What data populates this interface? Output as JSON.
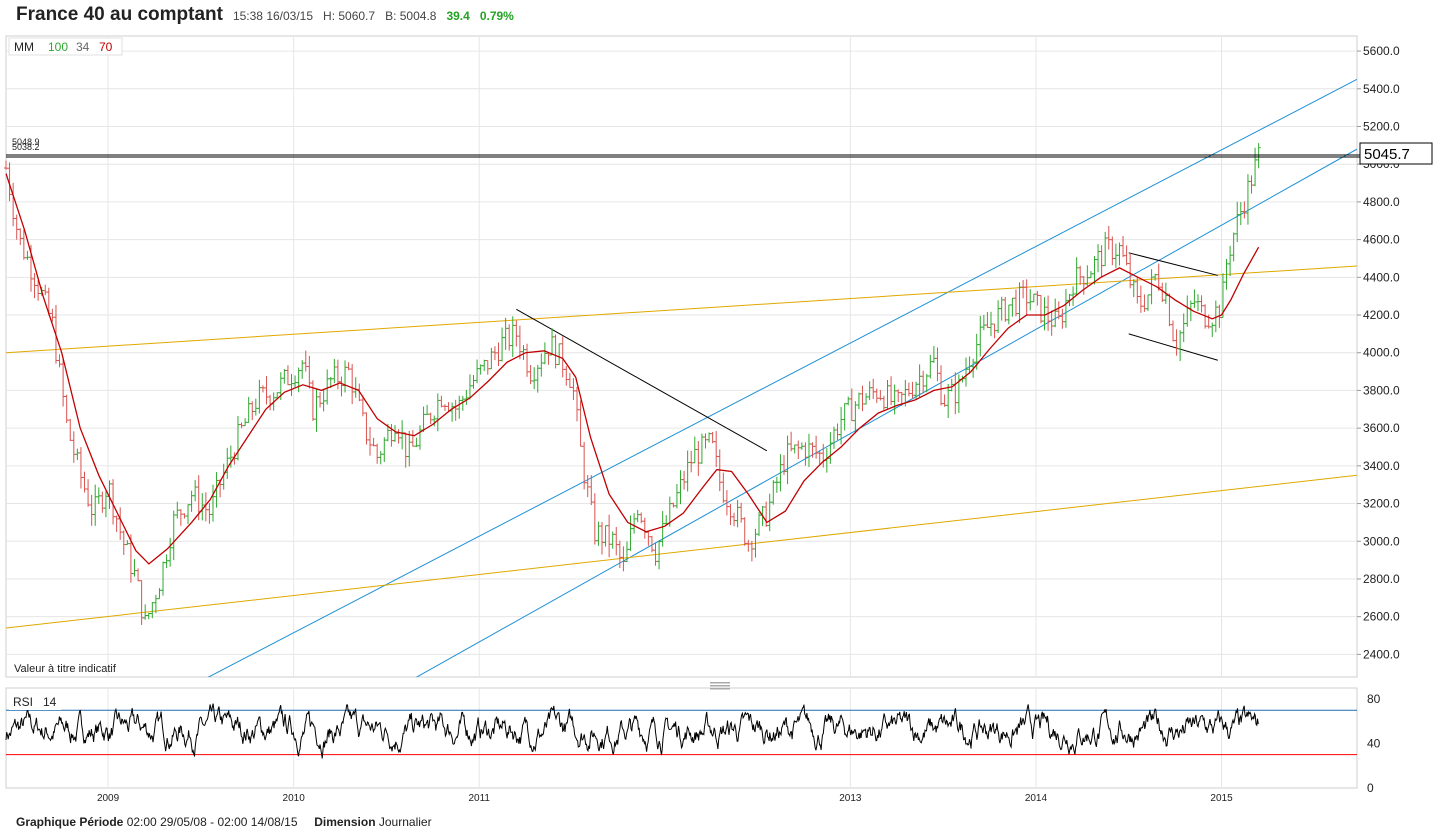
{
  "header": {
    "title": "France 40 au comptant",
    "time": "15:38 16/03/15",
    "high": "H: 5060.7",
    "bid": "B: 5004.8",
    "change": "39.4",
    "change_pct": "0.79%"
  },
  "legend": {
    "mm_label": "MM",
    "mm_periods": [
      "100",
      "34",
      "70"
    ]
  },
  "rsi_label": {
    "name": "RSI",
    "period": "14"
  },
  "disclaimer": "Valeur à titre indicatif",
  "level_labels": [
    "5048.9",
    "5038.2"
  ],
  "last_price_label": "5045.7",
  "footer": {
    "period_label": "Graphique Période",
    "period_value": "02:00 29/05/08 - 02:00 14/08/15",
    "dimension_label": "Dimension",
    "dimension_value": "Journalier"
  },
  "colors": {
    "up": "#2fa82f",
    "down": "#d9534f",
    "ma": "#c00000",
    "channel": "#1e90d6",
    "support": "#e0a800",
    "grid": "#e6e6e6",
    "rsi_upper": "#1e6fb5",
    "rsi_lower": "#ff0000"
  },
  "chart_data": [
    {
      "type": "candlestick",
      "title": "France 40 au comptant",
      "y_ticks": [
        2400,
        2600,
        2800,
        3000,
        3200,
        3400,
        3600,
        3800,
        4000,
        4200,
        4400,
        4600,
        4800,
        5000,
        5200,
        5400,
        5600
      ],
      "ylim": [
        2280,
        5680
      ],
      "x_tick_labels": [
        "2009",
        "2010",
        "2011",
        "2013",
        "2014",
        "2015"
      ],
      "x_tick_dates": [
        2009.0,
        2010.0,
        2011.0,
        2013.0,
        2014.0,
        2015.0
      ],
      "xlim": [
        2008.45,
        2015.73
      ],
      "last_price": 5045.7,
      "horizontal_levels": [
        5048.9,
        5038.2
      ],
      "price_path": [
        [
          2008.45,
          4980
        ],
        [
          2008.52,
          4600
        ],
        [
          2008.6,
          4420
        ],
        [
          2008.7,
          4150
        ],
        [
          2008.78,
          3600
        ],
        [
          2008.85,
          3350
        ],
        [
          2008.92,
          3150
        ],
        [
          2009.0,
          3300
        ],
        [
          2009.08,
          3000
        ],
        [
          2009.15,
          2800
        ],
        [
          2009.2,
          2560
        ],
        [
          2009.28,
          2800
        ],
        [
          2009.35,
          3100
        ],
        [
          2009.45,
          3250
        ],
        [
          2009.55,
          3150
        ],
        [
          2009.6,
          3300
        ],
        [
          2009.7,
          3550
        ],
        [
          2009.8,
          3750
        ],
        [
          2009.9,
          3800
        ],
        [
          2010.0,
          3900
        ],
        [
          2010.05,
          3950
        ],
        [
          2010.1,
          3700
        ],
        [
          2010.2,
          3850
        ],
        [
          2010.3,
          3900
        ],
        [
          2010.38,
          3600
        ],
        [
          2010.45,
          3450
        ],
        [
          2010.55,
          3650
        ],
        [
          2010.62,
          3450
        ],
        [
          2010.72,
          3650
        ],
        [
          2010.8,
          3780
        ],
        [
          2010.88,
          3700
        ],
        [
          2010.95,
          3830
        ],
        [
          2011.05,
          3950
        ],
        [
          2011.12,
          4050
        ],
        [
          2011.2,
          4100
        ],
        [
          2011.28,
          3900
        ],
        [
          2011.38,
          4050
        ],
        [
          2011.45,
          3950
        ],
        [
          2011.5,
          3850
        ],
        [
          2011.55,
          3450
        ],
        [
          2011.62,
          3050
        ],
        [
          2011.72,
          3000
        ],
        [
          2011.78,
          2850
        ],
        [
          2011.85,
          3200
        ],
        [
          2011.95,
          2950
        ],
        [
          2012.05,
          3200
        ],
        [
          2012.15,
          3450
        ],
        [
          2012.25,
          3520
        ],
        [
          2012.3,
          3300
        ],
        [
          2012.38,
          3150
        ],
        [
          2012.45,
          3000
        ],
        [
          2012.55,
          3150
        ],
        [
          2012.65,
          3450
        ],
        [
          2012.75,
          3500
        ],
        [
          2012.85,
          3450
        ],
        [
          2012.95,
          3650
        ],
        [
          2013.05,
          3750
        ],
        [
          2013.15,
          3800
        ],
        [
          2013.25,
          3720
        ],
        [
          2013.35,
          3850
        ],
        [
          2013.45,
          3950
        ],
        [
          2013.5,
          3750
        ],
        [
          2013.58,
          3800
        ],
        [
          2013.65,
          4000
        ],
        [
          2013.75,
          4150
        ],
        [
          2013.85,
          4250
        ],
        [
          2013.95,
          4300
        ],
        [
          2014.05,
          4200
        ],
        [
          2014.12,
          4150
        ],
        [
          2014.2,
          4380
        ],
        [
          2014.3,
          4450
        ],
        [
          2014.38,
          4550
        ],
        [
          2014.45,
          4550
        ],
        [
          2014.5,
          4400
        ],
        [
          2014.55,
          4250
        ],
        [
          2014.6,
          4300
        ],
        [
          2014.65,
          4420
        ],
        [
          2014.7,
          4300
        ],
        [
          2014.75,
          4050
        ],
        [
          2014.8,
          4150
        ],
        [
          2014.85,
          4280
        ],
        [
          2014.9,
          4200
        ],
        [
          2014.95,
          4200
        ],
        [
          2015.0,
          4250
        ],
        [
          2015.03,
          4500
        ],
        [
          2015.07,
          4650
        ],
        [
          2015.12,
          4800
        ],
        [
          2015.17,
          4950
        ],
        [
          2015.2,
          5045
        ]
      ],
      "ma_line": {
        "label": "MM",
        "points": [
          [
            2008.45,
            4950
          ],
          [
            2008.55,
            4650
          ],
          [
            2008.65,
            4300
          ],
          [
            2008.75,
            4000
          ],
          [
            2008.85,
            3600
          ],
          [
            2008.95,
            3350
          ],
          [
            2009.05,
            3150
          ],
          [
            2009.15,
            2950
          ],
          [
            2009.22,
            2880
          ],
          [
            2009.32,
            2960
          ],
          [
            2009.45,
            3100
          ],
          [
            2009.55,
            3220
          ],
          [
            2009.65,
            3400
          ],
          [
            2009.75,
            3550
          ],
          [
            2009.85,
            3700
          ],
          [
            2009.95,
            3790
          ],
          [
            2010.05,
            3830
          ],
          [
            2010.15,
            3800
          ],
          [
            2010.25,
            3840
          ],
          [
            2010.35,
            3800
          ],
          [
            2010.45,
            3650
          ],
          [
            2010.55,
            3580
          ],
          [
            2010.65,
            3560
          ],
          [
            2010.75,
            3620
          ],
          [
            2010.85,
            3700
          ],
          [
            2010.95,
            3760
          ],
          [
            2011.05,
            3850
          ],
          [
            2011.15,
            3950
          ],
          [
            2011.25,
            4000
          ],
          [
            2011.35,
            4010
          ],
          [
            2011.45,
            3970
          ],
          [
            2011.52,
            3870
          ],
          [
            2011.6,
            3550
          ],
          [
            2011.7,
            3250
          ],
          [
            2011.8,
            3100
          ],
          [
            2011.9,
            3050
          ],
          [
            2012.0,
            3080
          ],
          [
            2012.1,
            3150
          ],
          [
            2012.2,
            3280
          ],
          [
            2012.28,
            3380
          ],
          [
            2012.36,
            3370
          ],
          [
            2012.45,
            3250
          ],
          [
            2012.55,
            3100
          ],
          [
            2012.65,
            3160
          ],
          [
            2012.75,
            3320
          ],
          [
            2012.85,
            3420
          ],
          [
            2012.95,
            3500
          ],
          [
            2013.05,
            3600
          ],
          [
            2013.15,
            3680
          ],
          [
            2013.25,
            3720
          ],
          [
            2013.35,
            3750
          ],
          [
            2013.45,
            3800
          ],
          [
            2013.55,
            3820
          ],
          [
            2013.65,
            3900
          ],
          [
            2013.75,
            4020
          ],
          [
            2013.85,
            4130
          ],
          [
            2013.95,
            4200
          ],
          [
            2014.05,
            4200
          ],
          [
            2014.15,
            4250
          ],
          [
            2014.25,
            4330
          ],
          [
            2014.35,
            4400
          ],
          [
            2014.45,
            4450
          ],
          [
            2014.55,
            4400
          ],
          [
            2014.65,
            4350
          ],
          [
            2014.75,
            4280
          ],
          [
            2014.85,
            4220
          ],
          [
            2014.95,
            4180
          ],
          [
            2015.0,
            4200
          ],
          [
            2015.05,
            4280
          ],
          [
            2015.12,
            4420
          ],
          [
            2015.2,
            4560
          ]
        ]
      },
      "drawn_lines": [
        {
          "color": "channel",
          "from": [
            2008.8,
            1900
          ],
          "to": [
            2015.73,
            5450
          ]
        },
        {
          "color": "channel",
          "from": [
            2008.8,
            1250
          ],
          "to": [
            2015.73,
            5080
          ]
        },
        {
          "color": "support",
          "from": [
            2008.45,
            4000
          ],
          "to": [
            2015.73,
            4460
          ]
        },
        {
          "color": "support",
          "from": [
            2008.45,
            2540
          ],
          "to": [
            2015.73,
            3350
          ]
        },
        {
          "color": "black",
          "from": [
            2011.2,
            4230
          ],
          "to": [
            2012.55,
            3480
          ]
        },
        {
          "color": "black",
          "from": [
            2014.5,
            4530
          ],
          "to": [
            2014.98,
            4410
          ]
        },
        {
          "color": "black",
          "from": [
            2014.5,
            4100
          ],
          "to": [
            2014.98,
            3960
          ]
        }
      ]
    },
    {
      "type": "line",
      "title": "RSI 14",
      "y_ticks": [
        0,
        40,
        80
      ],
      "ylim": [
        0,
        90
      ],
      "levels": [
        70,
        30
      ],
      "x_tick_labels": [
        "2009",
        "2010",
        "2011",
        "2013",
        "2014",
        "2015"
      ]
    }
  ]
}
